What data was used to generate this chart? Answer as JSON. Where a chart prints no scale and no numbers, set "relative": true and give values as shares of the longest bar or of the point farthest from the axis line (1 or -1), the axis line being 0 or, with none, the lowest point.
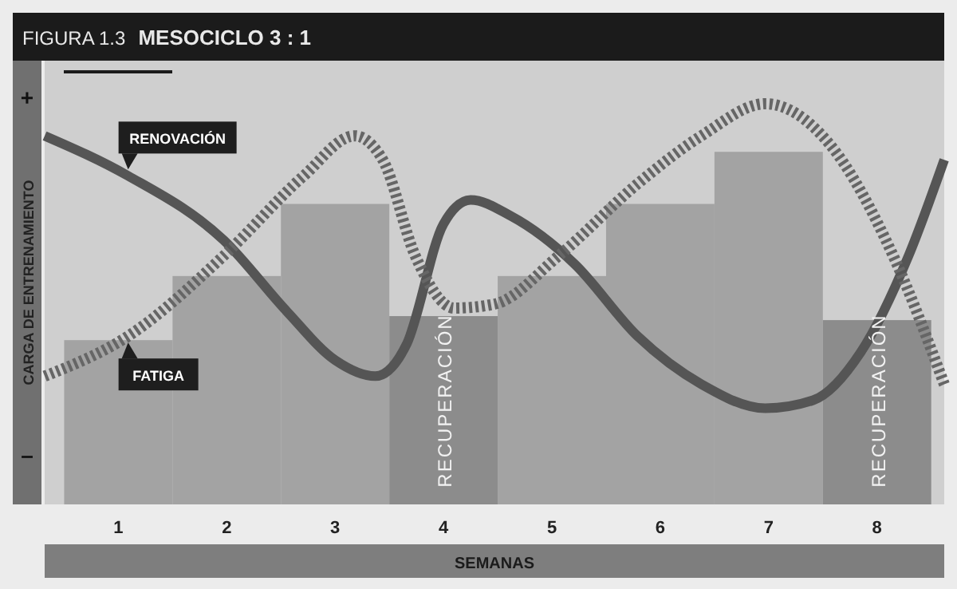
{
  "chart_data": {
    "type": "bar",
    "title": "MESOCICLO 3 : 1",
    "ylabel": "CARGA DE ENTRENAMIENTO",
    "xlabel": "SEMANAS",
    "relative": true,
    "x": [
      1,
      2,
      3,
      4,
      5,
      6,
      7,
      8
    ],
    "xlim": [
      0.32,
      8.62
    ],
    "xticks": [
      1,
      2,
      3,
      4,
      5,
      6,
      7,
      8
    ],
    "values": [
      0.41,
      0.57,
      0.75,
      0.47,
      0.57,
      0.75,
      0.88,
      0.46
    ],
    "colors": [
      "#a3a3a3",
      "#a3a3a3",
      "#a3a3a3",
      "#8c8c8c",
      "#a3a3a3",
      "#a3a3a3",
      "#a3a3a3",
      "#8c8c8c"
    ],
    "series": [
      {
        "name": "RENOVACIÓN",
        "type": "line",
        "color": "#555555",
        "line_style": "solid",
        "x": [
          0.32,
          1.09,
          1.97,
          2.56,
          3.0,
          3.37,
          3.66,
          4.0,
          4.25,
          4.62,
          5.21,
          5.79,
          6.38,
          6.97,
          7.41,
          7.85,
          8.29,
          8.62
        ],
        "values": [
          0.92,
          0.82,
          0.66,
          0.48,
          0.36,
          0.32,
          0.4,
          0.7,
          0.76,
          0.72,
          0.6,
          0.42,
          0.3,
          0.24,
          0.26,
          0.38,
          0.62,
          0.86
        ]
      },
      {
        "name": "FATIGA",
        "type": "line",
        "color": "#666666",
        "line_style": "dotted",
        "x": [
          0.32,
          1.09,
          1.97,
          2.71,
          3.18,
          3.44,
          3.74,
          4.1,
          4.47,
          5.06,
          5.79,
          6.38,
          6.97,
          7.56,
          8.15,
          8.62
        ],
        "values": [
          0.32,
          0.42,
          0.62,
          0.82,
          0.92,
          0.86,
          0.62,
          0.49,
          0.5,
          0.62,
          0.8,
          0.92,
          1,
          0.9,
          0.62,
          0.3
        ]
      }
    ],
    "annotations": [
      "FIGURA 1.3",
      "+",
      "–",
      "RECUPERACIÓN",
      "RECUPERACIÓN"
    ],
    "legend": false,
    "grid": false,
    "marker": "none"
  }
}
